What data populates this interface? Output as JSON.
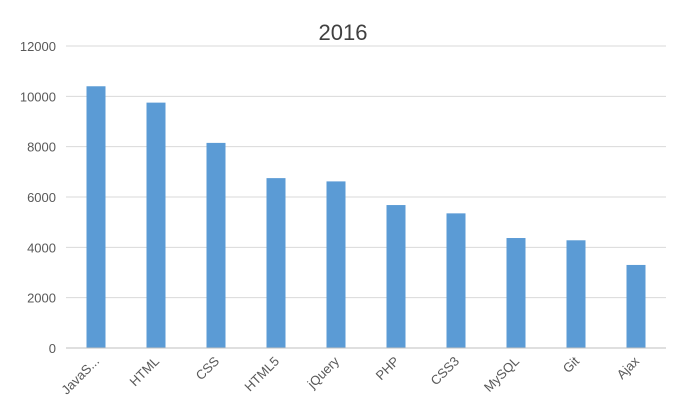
{
  "chart_data": {
    "type": "bar",
    "title": "2016",
    "categories": [
      "JavaS...",
      "HTML",
      "CSS",
      "HTML5",
      "jQuery",
      "PHP",
      "CSS3",
      "MySQL",
      "Git",
      "Ajax"
    ],
    "values": [
      10400,
      9750,
      8150,
      6750,
      6620,
      5680,
      5350,
      4370,
      4280,
      3300
    ],
    "ylim": [
      0,
      12000
    ],
    "yticks": [
      "0",
      "2000",
      "4000",
      "6000",
      "8000",
      "10000",
      "12000"
    ],
    "xlabel": "",
    "ylabel": "",
    "grid": true,
    "bar_color": "#5B9BD5"
  }
}
